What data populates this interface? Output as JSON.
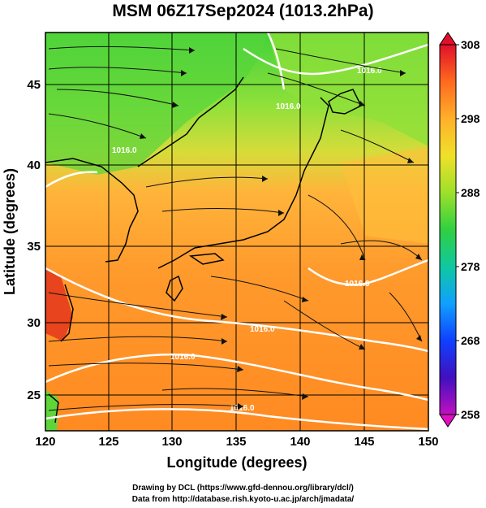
{
  "title": "MSM 06Z17Sep2024 (1013.2hPa)",
  "x_axis": {
    "label": "Longitude (degrees)",
    "ticks": [
      "120",
      "125",
      "130",
      "135",
      "140",
      "145",
      "150"
    ]
  },
  "y_axis": {
    "label": "Latitude  (degrees)",
    "ticks": [
      "25",
      "30",
      "35",
      "40",
      "45"
    ]
  },
  "colorbar": {
    "ticks": [
      "308",
      "298",
      "288",
      "278",
      "268",
      "258"
    ],
    "colors": [
      "#e0102a",
      "#ff6a1e",
      "#ffb02a",
      "#f0e02a",
      "#9ee02a",
      "#30d040",
      "#10c8a0",
      "#10a0ff",
      "#1040ff",
      "#4010c0",
      "#c010c0"
    ]
  },
  "isobar_labels": [
    "1016.0",
    "1016.0",
    "1016.0",
    "1016.0",
    "1016.0",
    "1016.0",
    "1016.0"
  ],
  "credits": {
    "line1": "Drawing by DCL (https://www.gfd-dennou.org/library/dcl/)",
    "line2": "Data from http://database.rish.kyoto-u.ac.jp/arch/jmadata/"
  }
}
